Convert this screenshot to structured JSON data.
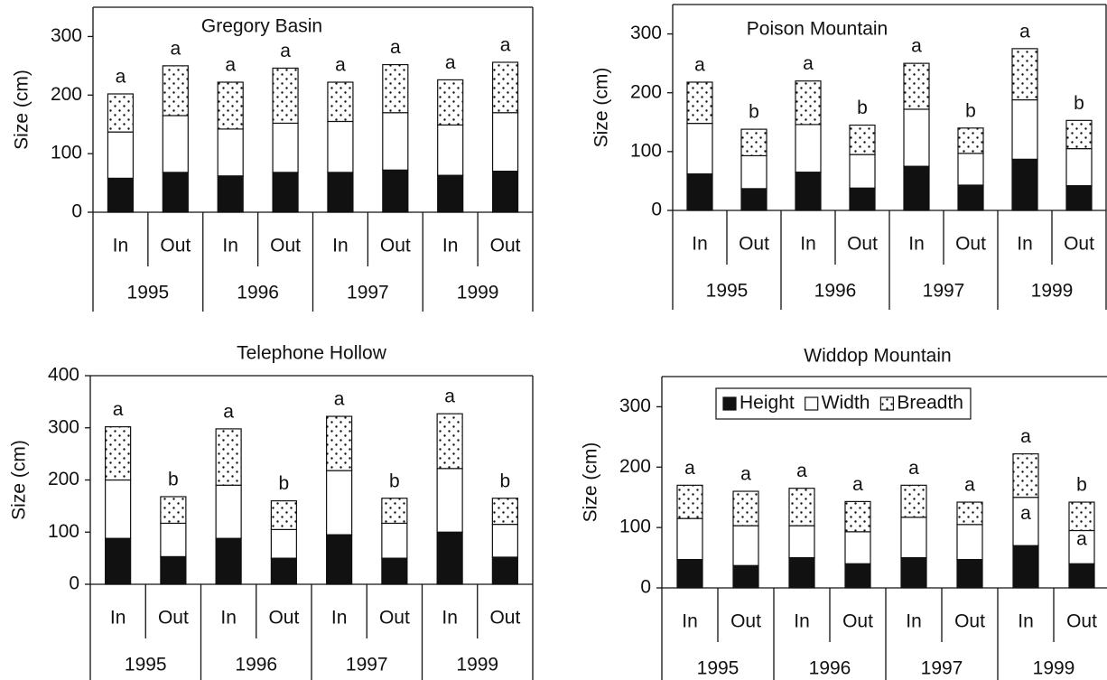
{
  "chart_data": [
    {
      "type": "bar",
      "stacked": true,
      "title": "Gregory Basin",
      "ylabel": "Size (cm)",
      "categories": [
        "In",
        "Out",
        "In",
        "Out",
        "In",
        "Out",
        "In",
        "Out"
      ],
      "groups": [
        "1995",
        "1996",
        "1997",
        "1999"
      ],
      "series": [
        {
          "color": "#111111",
          "values": [
            58,
            68,
            62,
            68,
            68,
            72,
            63,
            70
          ]
        },
        {
          "color": "#ffffff",
          "values": [
            79,
            97,
            80,
            84,
            87,
            98,
            86,
            100
          ]
        },
        {
          "color": "#ffffff",
          "pattern": "dots",
          "values": [
            65,
            85,
            80,
            94,
            67,
            82,
            77,
            86
          ]
        }
      ],
      "top_labels": [
        "a",
        "a",
        "a",
        "a",
        "a",
        "a",
        "a",
        "a"
      ],
      "ylim": [
        0,
        350
      ],
      "yticks": [
        0,
        100,
        200,
        300
      ]
    },
    {
      "type": "bar",
      "stacked": true,
      "title": "Poison Mountain",
      "ylabel": "Size (cm)",
      "categories": [
        "In",
        "Out",
        "In",
        "Out",
        "In",
        "Out",
        "In",
        "Out"
      ],
      "groups": [
        "1995",
        "1996",
        "1997",
        "1999"
      ],
      "series": [
        {
          "color": "#111111",
          "values": [
            62,
            37,
            65,
            38,
            75,
            43,
            87,
            42
          ]
        },
        {
          "color": "#ffffff",
          "values": [
            86,
            56,
            81,
            57,
            97,
            54,
            101,
            63
          ]
        },
        {
          "color": "#ffffff",
          "pattern": "dots",
          "values": [
            70,
            45,
            74,
            50,
            78,
            43,
            87,
            48
          ]
        }
      ],
      "top_labels": [
        "a",
        "b",
        "a",
        "b",
        "a",
        "b",
        "a",
        "b"
      ],
      "ylim": [
        0,
        350
      ],
      "yticks": [
        0,
        100,
        200,
        300
      ]
    },
    {
      "type": "bar",
      "stacked": true,
      "title": "Telephone Hollow",
      "ylabel": "Size (cm)",
      "categories": [
        "In",
        "Out",
        "In",
        "Out",
        "In",
        "Out",
        "In",
        "Out"
      ],
      "groups": [
        "1995",
        "1996",
        "1997",
        "1999"
      ],
      "series": [
        {
          "color": "#111111",
          "values": [
            88,
            53,
            88,
            50,
            95,
            50,
            100,
            52
          ]
        },
        {
          "color": "#ffffff",
          "values": [
            112,
            64,
            102,
            55,
            123,
            67,
            122,
            63
          ]
        },
        {
          "color": "#ffffff",
          "pattern": "dots",
          "values": [
            102,
            51,
            108,
            55,
            104,
            48,
            105,
            50
          ]
        }
      ],
      "top_labels": [
        "a",
        "b",
        "a",
        "b",
        "a",
        "b",
        "a",
        "b"
      ],
      "ylim": [
        0,
        400
      ],
      "yticks": [
        0,
        100,
        200,
        300,
        400
      ]
    },
    {
      "type": "bar",
      "stacked": true,
      "title": "Widdop Mountain",
      "ylabel": "Size (cm)",
      "categories": [
        "In",
        "Out",
        "In",
        "Out",
        "In",
        "Out",
        "In",
        "Out"
      ],
      "groups": [
        "1995",
        "1996",
        "1997",
        "1999"
      ],
      "legend": "top",
      "series": [
        {
          "name": "Height",
          "color": "#111111",
          "values": [
            47,
            37,
            50,
            40,
            50,
            47,
            70,
            40
          ],
          "labels": [
            null,
            null,
            null,
            null,
            null,
            null,
            "a",
            "b"
          ]
        },
        {
          "name": "Width",
          "color": "#ffffff",
          "values": [
            68,
            66,
            53,
            53,
            67,
            58,
            80,
            55
          ],
          "labels": [
            null,
            null,
            null,
            null,
            null,
            null,
            "a",
            "a"
          ]
        },
        {
          "name": "Breadth",
          "color": "#ffffff",
          "pattern": "dots",
          "values": [
            55,
            57,
            62,
            50,
            53,
            37,
            72,
            47
          ]
        }
      ],
      "top_labels": [
        "a",
        "a",
        "a",
        "a",
        "a",
        "a",
        "a",
        "b"
      ],
      "ylim": [
        0,
        350
      ],
      "yticks": [
        0,
        100,
        200,
        300
      ]
    }
  ]
}
